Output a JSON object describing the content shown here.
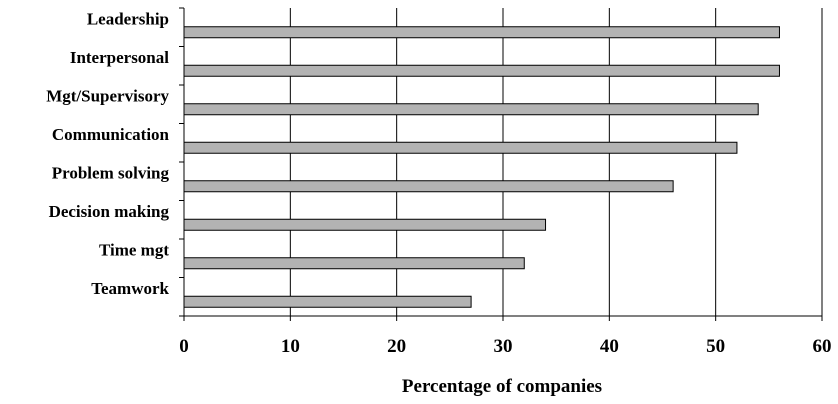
{
  "chart_data": {
    "type": "bar",
    "orientation": "horizontal",
    "title": "",
    "xlabel": "Percentage of companies",
    "ylabel": "",
    "categories": [
      "Leadership",
      "Interpersonal",
      "Mgt/Supervisory",
      "Communication",
      "Problem solving",
      "Decision making",
      "Time mgt",
      "Teamwork"
    ],
    "values": [
      56,
      56,
      54,
      52,
      46,
      34,
      32,
      27
    ],
    "xlim": [
      0,
      60
    ],
    "xticks": [
      "0",
      "10",
      "20",
      "30",
      "40",
      "50",
      "60"
    ],
    "grid": "vertical",
    "legend": "none",
    "bar_color": "#b3b3b3",
    "bar_edge_color": "#000000"
  }
}
